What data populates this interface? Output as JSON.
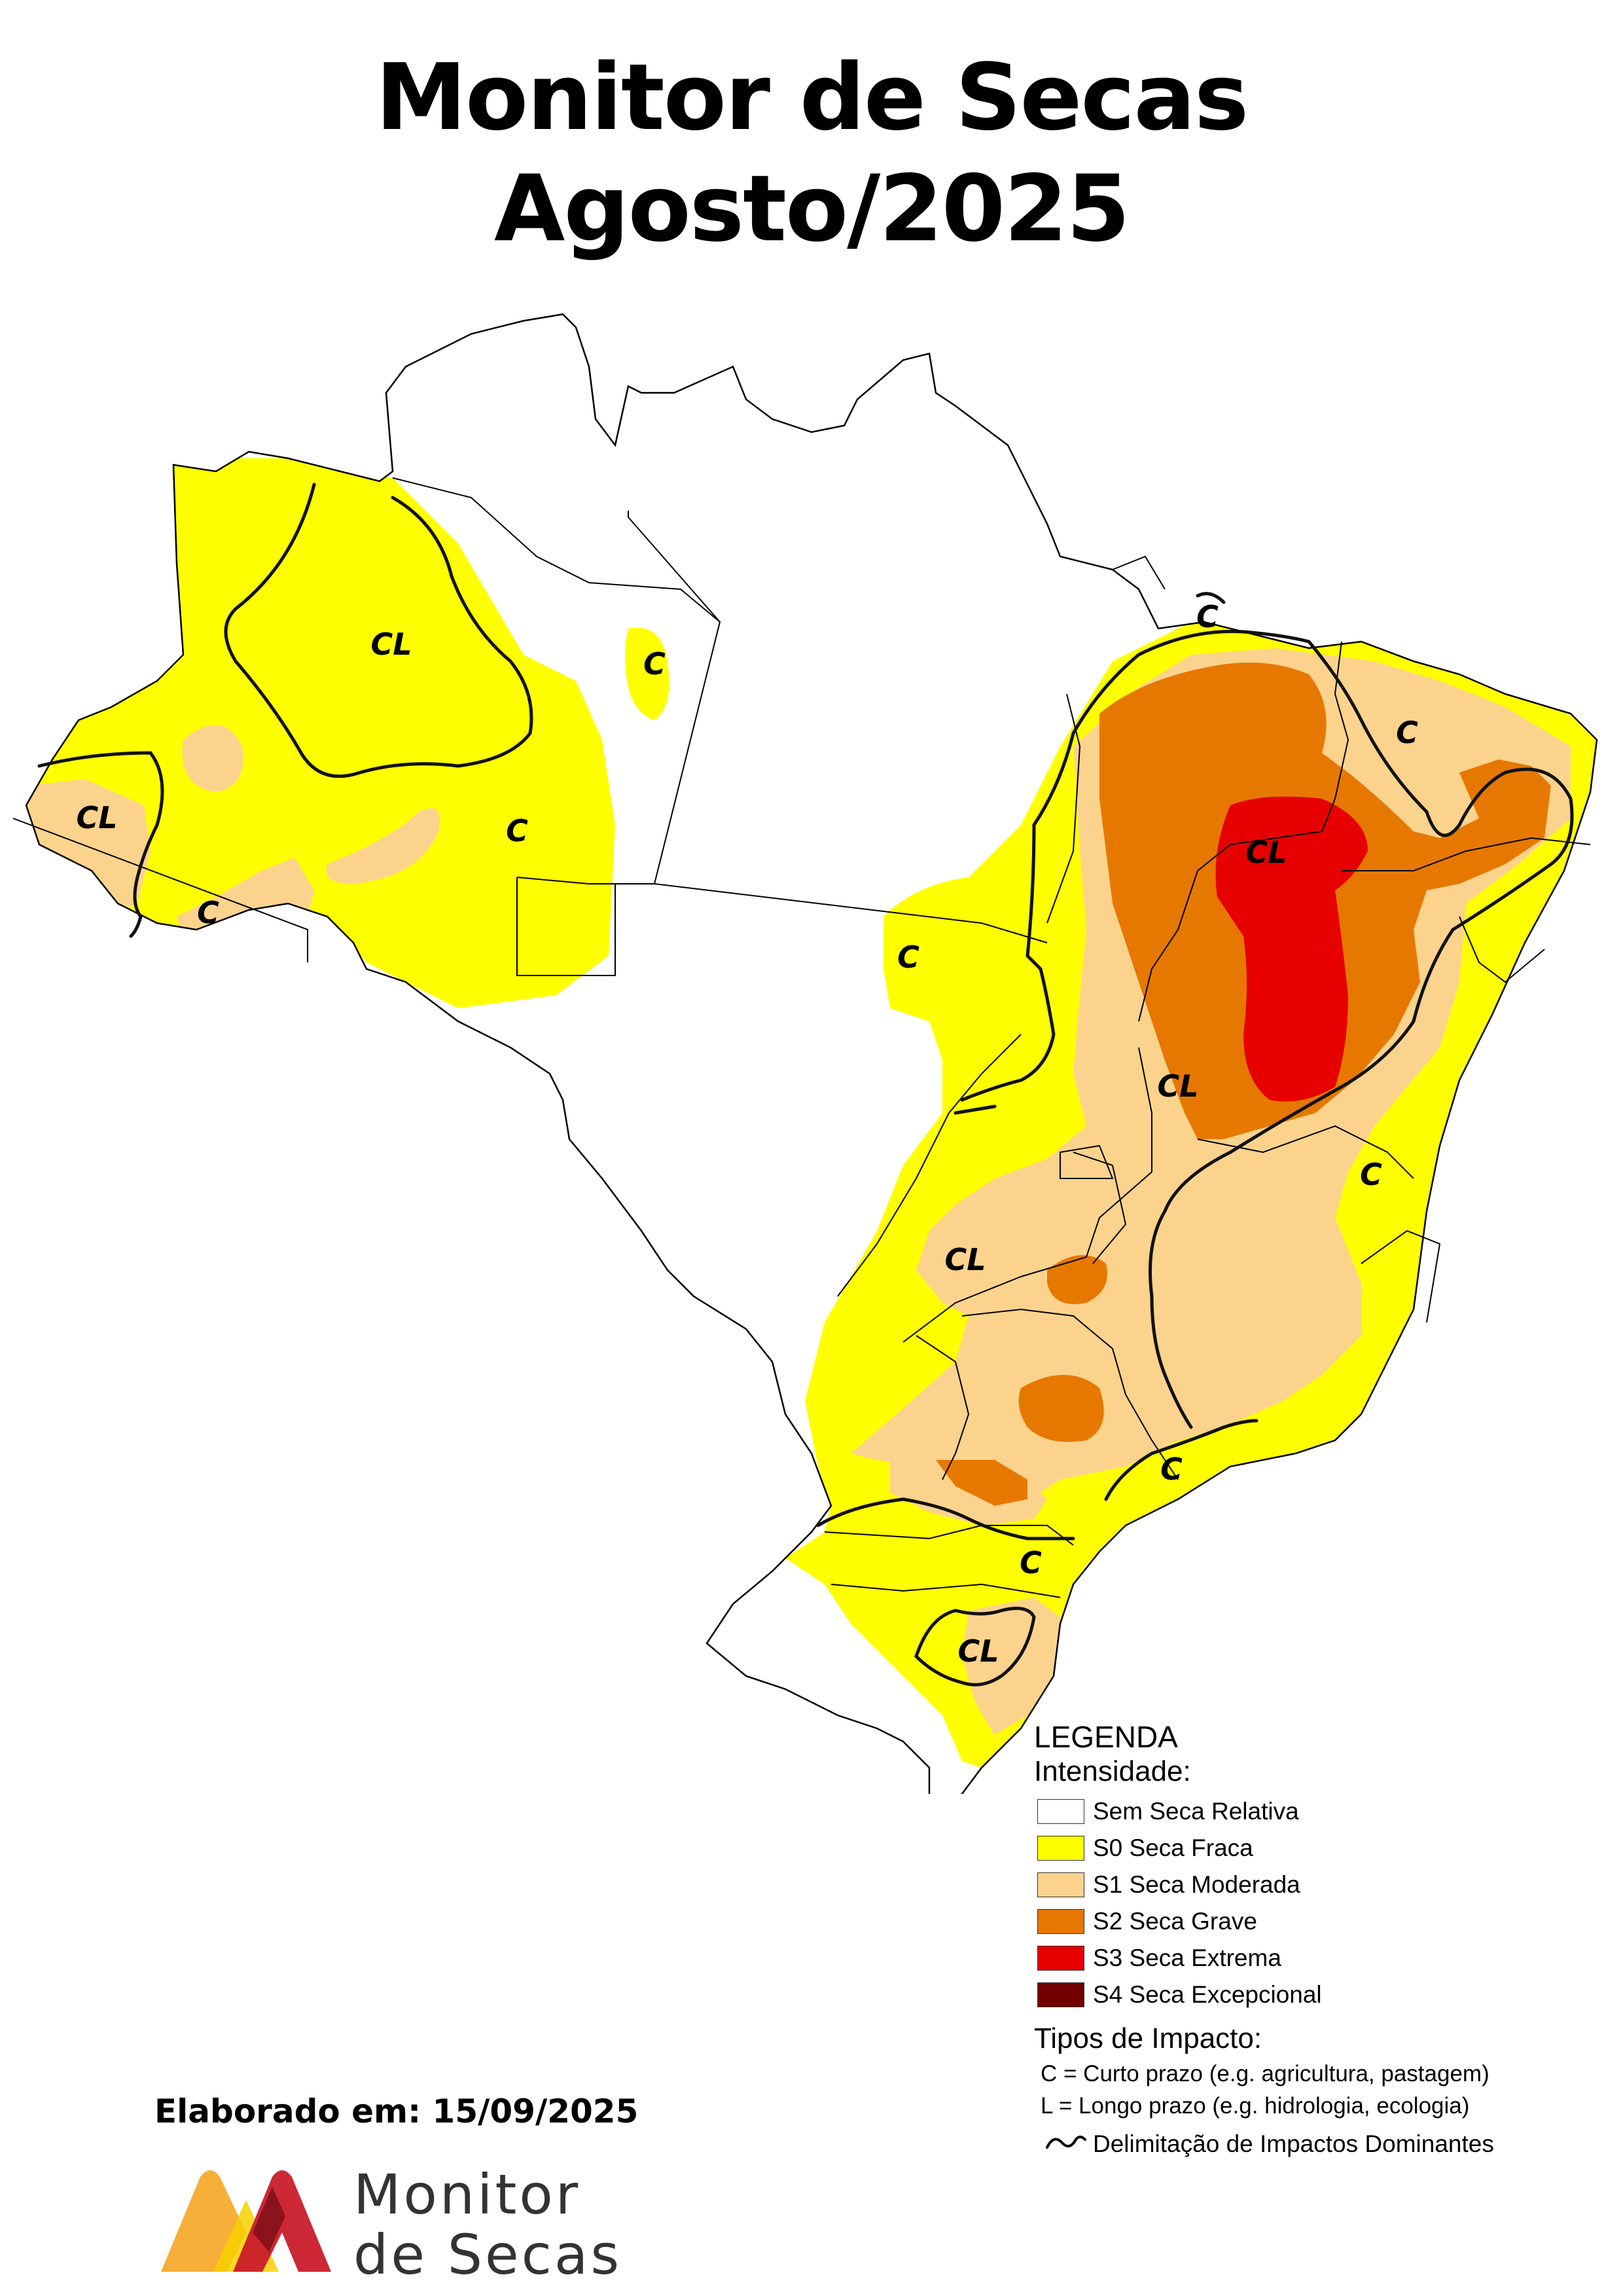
{
  "title_line1": "Monitor de Secas",
  "title_line2": "Agosto/2025",
  "map_labels": {
    "cl_amazonas_north": "CL",
    "c_para_small": "C",
    "cl_acre_west": "CL",
    "c_amazonas_south": "C",
    "c_acre_rondonia": "C",
    "c_maranhao_coast": "C",
    "c_rio_grande_norte": "C",
    "cl_piaui_bahia": "CL",
    "c_tocantins": "C",
    "cl_bahia_goias": "CL",
    "c_bahia_coast": "C",
    "cl_goias_minas": "CL",
    "c_sao_paulo_coast": "C",
    "c_parana_santa_catarina": "C",
    "cl_rio_grande_sul": "CL"
  },
  "legend": {
    "title": "LEGENDA",
    "subtitle": "Intensidade:",
    "items": [
      {
        "label": "Sem Seca Relativa",
        "color": "#ffffff"
      },
      {
        "label": "S0 Seca Fraca",
        "color": "#ffff00"
      },
      {
        "label": "S1 Seca Moderada",
        "color": "#fcd38d"
      },
      {
        "label": "S2 Seca Grave",
        "color": "#e67800"
      },
      {
        "label": "S3 Seca Extrema",
        "color": "#e60000"
      },
      {
        "label": "S4 Seca Excepcional",
        "color": "#730000"
      }
    ],
    "impact_title": "Tipos de Impacto:",
    "impact_c": "C = Curto prazo (e.g. agricultura, pastagem)",
    "impact_l": "L = Longo prazo (e.g. hidrologia, ecologia)",
    "delimitation": "Delimitação de Impactos Dominantes"
  },
  "elaborado": "Elaborado em: 15/09/2025",
  "logo": {
    "line1": "Monitor",
    "line2": "de Secas"
  }
}
